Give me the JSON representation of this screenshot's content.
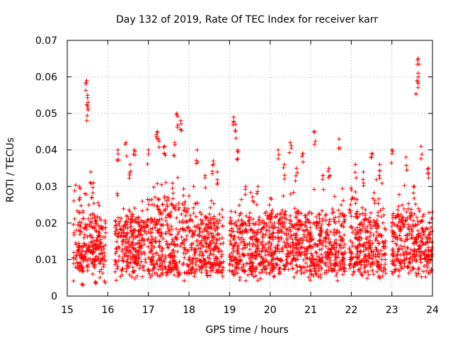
{
  "chart_data": {
    "type": "scatter",
    "title": "Day 132 of 2019, Rate Of TEC Index for receiver karr",
    "xlabel": "GPS time / hours",
    "ylabel": "ROTI / TECUs",
    "xlim": [
      15,
      24
    ],
    "ylim": [
      0,
      0.07
    ],
    "x_ticks": [
      "15",
      "16",
      "17",
      "18",
      "19",
      "20",
      "21",
      "22",
      "23",
      "24"
    ],
    "y_ticks": [
      "0",
      "0.01",
      "0.02",
      "0.03",
      "0.04",
      "0.05",
      "0.06",
      "0.07"
    ],
    "grid": true,
    "marker": "+",
    "color": "#ff0000",
    "series": [
      {
        "name": "ROTI",
        "segments": [
          {
            "x": [
              15.15,
              15.95
            ],
            "typical": [
              0.006,
              0.025
            ],
            "peaks": [
              [
                15.3,
                0.03
              ],
              [
                15.48,
                0.059
              ],
              [
                15.5,
                0.055
              ],
              [
                15.5,
                0.052
              ],
              [
                15.58,
                0.034
              ],
              [
                15.65,
                0.031
              ]
            ],
            "low": 0.003
          },
          {
            "x": [
              16.18,
              16.95
            ],
            "typical": [
              0.006,
              0.024
            ],
            "peaks": [
              [
                16.25,
                0.04
              ],
              [
                16.45,
                0.042
              ],
              [
                16.65,
                0.04
              ],
              [
                16.55,
                0.036
              ]
            ],
            "low": 0.004
          },
          {
            "x": [
              16.97,
              17.95
            ],
            "typical": [
              0.005,
              0.03
            ],
            "peaks": [
              [
                17.0,
                0.04
              ],
              [
                17.22,
                0.045
              ],
              [
                17.4,
                0.041
              ],
              [
                17.7,
                0.05
              ],
              [
                17.8,
                0.048
              ],
              [
                17.65,
                0.042
              ],
              [
                17.25,
                0.043
              ]
            ],
            "low": 0.004
          },
          {
            "x": [
              17.95,
              18.85
            ],
            "typical": [
              0.005,
              0.025
            ],
            "peaks": [
              [
                18.2,
                0.04
              ],
              [
                18.4,
                0.033
              ],
              [
                18.7,
                0.034
              ],
              [
                18.6,
                0.037
              ]
            ],
            "low": 0.005
          },
          {
            "x": [
              19.0,
              19.95
            ],
            "typical": [
              0.005,
              0.024
            ],
            "peaks": [
              [
                19.1,
                0.049
              ],
              [
                19.15,
                0.047
              ],
              [
                19.2,
                0.04
              ],
              [
                19.4,
                0.03
              ],
              [
                19.7,
                0.03
              ]
            ],
            "low": 0.004
          },
          {
            "x": [
              19.95,
              20.95
            ],
            "typical": [
              0.006,
              0.026
            ],
            "peaks": [
              [
                20.2,
                0.04
              ],
              [
                20.5,
                0.042
              ],
              [
                20.8,
                0.039
              ],
              [
                20.35,
                0.036
              ],
              [
                20.65,
                0.035
              ]
            ],
            "low": 0.005
          },
          {
            "x": [
              20.95,
              21.85
            ],
            "typical": [
              0.005,
              0.025
            ],
            "peaks": [
              [
                21.1,
                0.045
              ],
              [
                21.45,
                0.035
              ],
              [
                21.7,
                0.043
              ],
              [
                21.3,
                0.033
              ]
            ],
            "low": 0.004
          },
          {
            "x": [
              21.95,
              22.85
            ],
            "typical": [
              0.005,
              0.026
            ],
            "peaks": [
              [
                22.1,
                0.036
              ],
              [
                22.3,
                0.034
              ],
              [
                22.5,
                0.039
              ],
              [
                22.7,
                0.036
              ]
            ],
            "low": 0.004
          },
          {
            "x": [
              23.0,
              24.0
            ],
            "typical": [
              0.006,
              0.025
            ],
            "peaks": [
              [
                23.0,
                0.04
              ],
              [
                23.35,
                0.038
              ],
              [
                23.65,
                0.065
              ],
              [
                23.65,
                0.061
              ],
              [
                23.62,
                0.059
              ],
              [
                23.72,
                0.041
              ],
              [
                23.9,
                0.035
              ],
              [
                23.55,
                0.03
              ]
            ],
            "low": 0.005
          }
        ]
      }
    ]
  }
}
